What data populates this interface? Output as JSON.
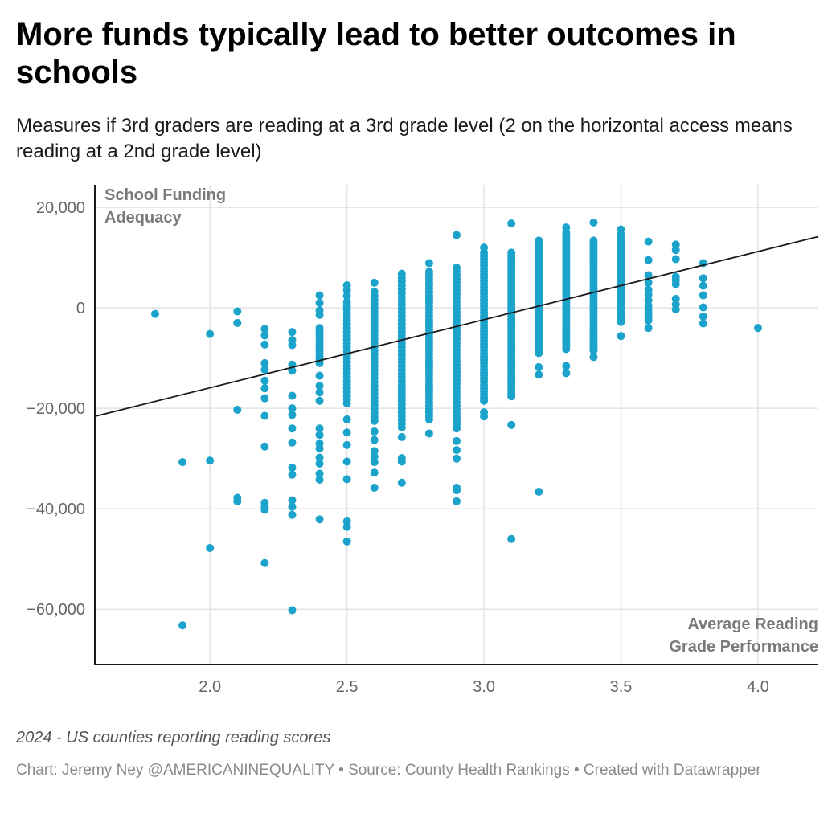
{
  "header": {
    "title": "More funds typically lead to better outcomes in schools",
    "subtitle": "Measures if 3rd graders are reading at a 3rd grade level (2 on the horizontal access means reading at a 2nd grade level)"
  },
  "footer": {
    "notes": "2024 - US counties reporting reading scores",
    "byline": "Chart: Jeremy Ney @AMERICANINEQUALITY • Source: County Health Rankings • Created with Datawrapper"
  },
  "colors": {
    "dot": "#1ba3cb",
    "trendline": "#1a1a1a",
    "grid": "#e3e3e3",
    "axis": "#1a1a1a"
  },
  "chart_data": {
    "type": "scatter",
    "title": "More funds typically lead to better outcomes in schools",
    "xlabel": "Average Reading Grade Performance",
    "ylabel": "School Funding Adequacy",
    "xlabel_lines": [
      "Average Reading",
      "Grade Performance"
    ],
    "ylabel_lines": [
      "School Funding",
      "Adequacy"
    ],
    "xlim": [
      1.58,
      4.22
    ],
    "ylim": [
      -71000,
      24500
    ],
    "x_ticks": [
      2.0,
      2.5,
      3.0,
      3.5,
      4.0
    ],
    "x_tick_labels": [
      "2.0",
      "2.5",
      "3.0",
      "3.5",
      "4.0"
    ],
    "y_ticks": [
      20000,
      0,
      -20000,
      -40000,
      -60000
    ],
    "y_tick_labels": [
      "20,000",
      "0",
      "−20,000",
      "−40,000",
      "−60,000"
    ],
    "grid": true,
    "trendline": {
      "x": [
        1.58,
        4.22
      ],
      "y": [
        -21600,
        14200
      ]
    },
    "columns": [
      {
        "x": 1.8,
        "y": [
          -1200
        ]
      },
      {
        "x": 1.9,
        "y": [
          -30700,
          -63200
        ]
      },
      {
        "x": 2.0,
        "y": [
          -5200,
          -30400,
          -47800
        ]
      },
      {
        "x": 2.1,
        "y": [
          -700,
          -3000,
          -20300,
          -37800,
          -38500
        ]
      },
      {
        "x": 2.2,
        "y": [
          -4200,
          -5500,
          -7300,
          -11000,
          -12300,
          -14500,
          -16000,
          -18000,
          -21500,
          -27600,
          -38800,
          -39600,
          -40200,
          -50800
        ]
      },
      {
        "x": 2.3,
        "y": [
          -4800,
          -6400,
          -7400,
          -11300,
          -12500,
          -17500,
          -20000,
          -21300,
          -24000,
          -26800,
          -31800,
          -33200,
          -38300,
          -39600,
          -41200,
          -60200
        ]
      },
      {
        "x": 2.4,
        "y": [
          2500,
          1000,
          -500,
          -1400
        ],
        "range": [
          -4000,
          -11000,
          12
        ],
        "y2": [
          -13500,
          -15500,
          -16800,
          -18500,
          -24000,
          -25300,
          -27000,
          -28000,
          -29800,
          -31000,
          -33000,
          -34200,
          -42100
        ]
      },
      {
        "x": 2.5,
        "y": [
          4500,
          3500,
          2400
        ],
        "range": [
          1200,
          -19000,
          28
        ],
        "y2": [
          -22200,
          -24800,
          -27300,
          -30600,
          -34100,
          -42500,
          -43600,
          -46500
        ]
      },
      {
        "x": 2.6,
        "y": [
          5000,
          -24600,
          -26300,
          -28500,
          -29600,
          -30700,
          -32800,
          -35800
        ],
        "range": [
          3200,
          -22500,
          34
        ]
      },
      {
        "x": 2.7,
        "y": [
          6800,
          -25700,
          -29900,
          -30600,
          -34800
        ],
        "range": [
          6000,
          -23800,
          40
        ]
      },
      {
        "x": 2.8,
        "y": [
          8900,
          -25000
        ],
        "range": [
          7200,
          -22200,
          44
        ]
      },
      {
        "x": 2.9,
        "y": [
          14500,
          -26500,
          -28300,
          -30000,
          -35800,
          -36300,
          -38500
        ],
        "range": [
          8000,
          -24000,
          44
        ]
      },
      {
        "x": 3.0,
        "y": [
          12000,
          -20800,
          -21600
        ],
        "range": [
          11000,
          -18500,
          48
        ]
      },
      {
        "x": 3.1,
        "y": [
          16800,
          -23300,
          -46000
        ],
        "range": [
          11000,
          -17600,
          46
        ]
      },
      {
        "x": 3.2,
        "y": [
          13400,
          -11800,
          -13300,
          -36600
        ],
        "range": [
          12600,
          -9000,
          44
        ]
      },
      {
        "x": 3.3,
        "y": [
          16000,
          -11600,
          -13000
        ],
        "range": [
          15000,
          -8200,
          46
        ]
      },
      {
        "x": 3.4,
        "y": [
          17000,
          -9800
        ],
        "range": [
          13400,
          -8500,
          40
        ]
      },
      {
        "x": 3.5,
        "y": [
          15600,
          -5600
        ],
        "range": [
          14600,
          -2800,
          36
        ]
      },
      {
        "x": 3.6,
        "y": [
          13200,
          9500,
          6500,
          5000,
          3600,
          2600,
          1500,
          500,
          -300,
          -1000,
          -1800,
          -2500,
          -4000
        ]
      },
      {
        "x": 3.7,
        "y": [
          12600,
          11500,
          9700,
          6200,
          5500,
          4700,
          1800,
          700,
          -300
        ]
      },
      {
        "x": 3.8,
        "y": [
          8900,
          5900,
          4400,
          2500,
          100,
          -1700,
          -3100
        ]
      },
      {
        "x": 4.0,
        "y": [
          -4000
        ]
      }
    ]
  }
}
